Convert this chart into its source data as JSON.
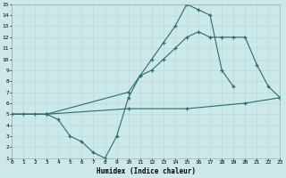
{
  "xlabel": "Humidex (Indice chaleur)",
  "bg_color": "#cce8e8",
  "line_color": "#2d6b6b",
  "xlim": [
    0,
    23
  ],
  "ylim": [
    1,
    15
  ],
  "xticks": [
    0,
    1,
    2,
    3,
    4,
    5,
    6,
    7,
    8,
    9,
    10,
    11,
    12,
    13,
    14,
    15,
    16,
    17,
    18,
    19,
    20,
    21,
    22,
    23
  ],
  "yticks": [
    1,
    2,
    3,
    4,
    5,
    6,
    7,
    8,
    9,
    10,
    11,
    12,
    13,
    14,
    15
  ],
  "line1_x": [
    0,
    1,
    2,
    3,
    4,
    5,
    6,
    7,
    8,
    9,
    10,
    11,
    12,
    13,
    14,
    15,
    16,
    17,
    18,
    19
  ],
  "line1_y": [
    5,
    5,
    5,
    5,
    4.5,
    3.0,
    2.5,
    1.5,
    1.0,
    3.0,
    6.5,
    8.5,
    10.0,
    11.5,
    13.0,
    15.0,
    14.5,
    14.0,
    9.0,
    7.5
  ],
  "line2_x": [
    0,
    3,
    10,
    11,
    12,
    13,
    14,
    15,
    16,
    17,
    18,
    19,
    20,
    21,
    22,
    23
  ],
  "line2_y": [
    5,
    5,
    7.0,
    8.5,
    9.0,
    10.0,
    11.0,
    12.0,
    12.5,
    12.0,
    12.0,
    12.0,
    12.0,
    9.5,
    7.5,
    6.5
  ],
  "line3_x": [
    0,
    3,
    10,
    15,
    20,
    23
  ],
  "line3_y": [
    5,
    5,
    5.5,
    5.5,
    6.0,
    6.5
  ]
}
